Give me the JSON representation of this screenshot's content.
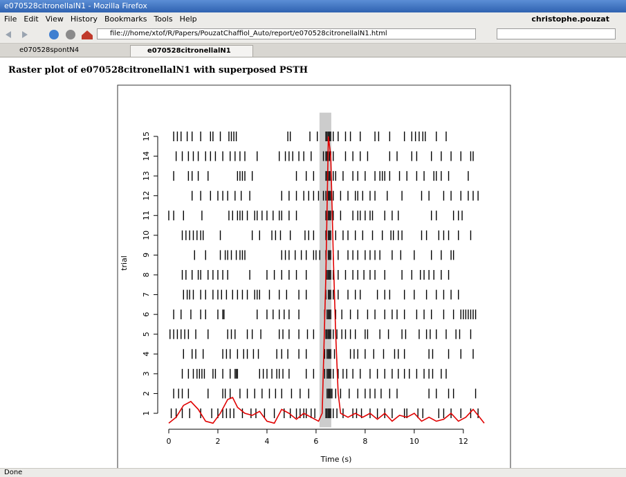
{
  "window": {
    "title": "e070528citronellalN1 - Mozilla Firefox"
  },
  "menu": [
    "File",
    "Edit",
    "View",
    "History",
    "Bookmarks",
    "Tools",
    "Help"
  ],
  "user": "christophe.pouzat",
  "url": "file:///home/xtof/R/Papers/PouzatChaffiol_Auto/report/e070528citronellalN1.html",
  "tabs": [
    "e070528spontN4",
    "e070528citronellalN1"
  ],
  "heading": "Raster plot of e070528citronellalN1 with superposed PSTH",
  "status": "Done",
  "chart_data": {
    "type": "raster",
    "xlabel": "Time (s)",
    "ylabel": "trial",
    "xlim": [
      0,
      12.85
    ],
    "ylim": [
      0.5,
      15.5
    ],
    "xticks": [
      0,
      2,
      4,
      6,
      8,
      10,
      12
    ],
    "yticks": [
      1,
      2,
      3,
      4,
      5,
      6,
      7,
      8,
      9,
      10,
      11,
      12,
      13,
      14,
      15
    ],
    "stimulus": [
      6.14,
      6.62
    ],
    "stimulus_color": "#cccccc",
    "spike_color": "#000000",
    "spikes": [
      [
        0.1,
        0.3,
        0.55,
        0.85,
        1.3,
        1.75,
        2.0,
        2.2,
        2.35,
        2.5,
        2.65,
        3.0,
        3.35,
        3.55,
        3.9,
        4.3,
        4.7,
        4.95,
        5.2,
        5.35,
        5.5,
        5.6,
        5.8,
        5.95,
        6.4,
        6.45,
        6.5,
        6.55,
        6.6,
        6.7,
        6.85,
        7.1,
        7.5,
        7.65,
        7.85,
        8.2,
        8.5,
        8.8,
        9.1,
        9.6,
        9.7,
        10.15,
        10.35,
        11.0,
        11.2,
        11.5,
        11.9,
        12.3,
        12.6
      ],
      [
        0.2,
        0.4,
        0.55,
        0.8,
        1.6,
        2.2,
        2.3,
        2.5,
        2.9,
        3.2,
        3.5,
        3.8,
        4.1,
        4.35,
        4.6,
        5.0,
        5.35,
        5.7,
        6.45,
        6.5,
        6.55,
        6.6,
        6.65,
        6.8,
        7.0,
        7.35,
        7.7,
        8.0,
        8.2,
        8.4,
        8.65,
        9.0,
        9.3,
        10.6,
        10.9,
        11.4,
        11.6,
        12.5
      ],
      [
        0.55,
        0.8,
        1.0,
        1.15,
        1.25,
        1.35,
        1.45,
        1.8,
        1.9,
        2.2,
        2.5,
        2.7,
        2.75,
        2.8,
        3.7,
        3.85,
        4.0,
        4.2,
        4.4,
        4.5,
        4.65,
        4.9,
        5.6,
        5.9,
        6.35,
        6.45,
        6.5,
        6.55,
        6.6,
        6.7,
        6.9,
        7.1,
        7.25,
        7.5,
        7.8,
        8.2,
        8.5,
        8.8,
        9.1,
        9.35,
        9.6,
        9.8,
        10.1,
        10.4,
        10.6,
        10.75,
        11.1,
        11.3
      ],
      [
        0.6,
        0.95,
        1.1,
        1.4,
        2.2,
        2.35,
        2.5,
        2.8,
        3.05,
        3.2,
        3.45,
        3.65,
        4.4,
        4.6,
        4.85,
        5.3,
        5.6,
        6.35,
        6.45,
        6.5,
        6.55,
        6.6,
        6.75,
        7.4,
        7.55,
        7.7,
        8.0,
        8.35,
        8.75,
        9.2,
        9.35,
        9.6,
        10.6,
        10.75,
        11.4,
        11.9,
        12.4
      ],
      [
        0.05,
        0.2,
        0.35,
        0.5,
        0.65,
        0.8,
        1.1,
        1.6,
        2.4,
        2.55,
        2.7,
        3.2,
        3.4,
        3.75,
        4.5,
        4.65,
        4.9,
        5.3,
        5.65,
        5.9,
        6.4,
        6.45,
        6.5,
        6.55,
        6.6,
        6.7,
        6.85,
        7.05,
        7.2,
        7.4,
        7.6,
        8.0,
        8.1,
        8.6,
        8.95,
        9.5,
        9.65,
        10.2,
        10.5,
        10.65,
        10.9,
        11.3,
        11.7,
        11.85,
        12.3
      ],
      [
        0.2,
        0.5,
        0.9,
        1.3,
        1.5,
        2.0,
        2.2,
        2.25,
        3.6,
        4.0,
        4.25,
        4.5,
        4.7,
        4.9,
        5.3,
        6.35,
        6.45,
        6.5,
        6.55,
        6.6,
        6.8,
        7.05,
        7.4,
        7.7,
        8.1,
        8.4,
        8.8,
        9.1,
        9.3,
        9.6,
        10.1,
        10.4,
        10.7,
        11.2,
        11.6,
        11.9,
        12.0,
        12.1,
        12.2,
        12.3,
        12.4,
        12.5
      ],
      [
        0.6,
        0.75,
        0.85,
        1.0,
        1.3,
        1.5,
        1.8,
        2.0,
        2.15,
        2.35,
        2.6,
        2.8,
        3.0,
        3.2,
        3.5,
        3.6,
        3.7,
        4.1,
        4.5,
        4.8,
        5.3,
        5.6,
        6.4,
        6.5,
        6.55,
        6.6,
        6.7,
        6.9,
        7.3,
        7.6,
        7.8,
        8.5,
        8.8,
        9.0,
        9.6,
        10.0,
        10.5,
        10.9,
        11.2,
        11.5,
        11.8
      ],
      [
        0.55,
        0.7,
        0.95,
        1.2,
        1.3,
        1.6,
        1.8,
        2.0,
        2.2,
        2.4,
        3.3,
        4.0,
        4.3,
        4.6,
        4.9,
        5.2,
        5.6,
        6.4,
        6.45,
        6.5,
        6.55,
        6.6,
        6.7,
        6.9,
        7.2,
        7.5,
        7.7,
        7.95,
        8.2,
        8.4,
        8.8,
        9.5,
        9.9,
        10.25,
        10.4,
        10.6,
        10.8,
        11.1,
        11.4
      ],
      [
        1.05,
        1.5,
        2.1,
        2.3,
        2.4,
        2.55,
        2.75,
        2.9,
        3.0,
        3.1,
        4.6,
        4.75,
        4.9,
        5.15,
        5.4,
        5.6,
        5.9,
        6.0,
        6.15,
        6.4,
        6.5,
        6.55,
        6.6,
        6.7,
        6.9,
        7.3,
        7.5,
        7.7,
        8.0,
        8.2,
        8.4,
        8.6,
        9.1,
        9.45,
        10.0,
        10.7,
        11.1,
        11.5,
        11.6
      ],
      [
        0.55,
        0.7,
        0.85,
        1.0,
        1.15,
        1.3,
        1.4,
        2.1,
        3.4,
        3.7,
        4.2,
        4.35,
        4.55,
        4.95,
        5.55,
        5.7,
        5.9,
        6.4,
        6.5,
        6.55,
        6.6,
        6.8,
        7.1,
        7.3,
        7.6,
        7.9,
        8.3,
        8.7,
        9.05,
        9.15,
        9.35,
        9.5,
        10.3,
        10.5,
        11.0,
        11.2,
        11.4,
        11.8,
        12.3
      ],
      [
        0.0,
        0.2,
        0.6,
        1.35,
        2.45,
        2.6,
        2.8,
        2.9,
        3.0,
        3.2,
        3.5,
        3.6,
        3.8,
        4.0,
        4.25,
        4.5,
        4.6,
        4.9,
        5.2,
        6.4,
        6.45,
        6.5,
        6.55,
        6.6,
        6.7,
        7.0,
        7.5,
        7.7,
        7.8,
        8.0,
        8.2,
        8.3,
        8.8,
        9.1,
        9.35,
        10.7,
        10.9,
        11.6,
        11.8,
        11.95
      ],
      [
        0.95,
        1.3,
        1.7,
        2.0,
        2.2,
        2.4,
        2.7,
        2.95,
        3.3,
        4.6,
        4.9,
        5.2,
        5.5,
        5.7,
        5.9,
        6.1,
        6.3,
        6.4,
        6.5,
        6.55,
        6.6,
        6.7,
        7.0,
        7.3,
        7.6,
        7.7,
        7.9,
        8.2,
        8.4,
        8.9,
        9.5,
        10.3,
        10.6,
        11.2,
        11.5,
        11.9,
        12.2,
        12.4,
        12.6
      ],
      [
        0.2,
        0.8,
        0.95,
        1.2,
        1.6,
        2.8,
        2.9,
        3.0,
        3.1,
        3.4,
        5.2,
        5.6,
        5.9,
        6.4,
        6.45,
        6.5,
        6.55,
        6.6,
        6.7,
        6.8,
        7.1,
        7.5,
        7.7,
        8.0,
        8.4,
        8.6,
        8.7,
        8.8,
        9.0,
        9.4,
        9.7,
        10.1,
        10.4,
        10.8,
        10.9,
        11.1,
        11.4,
        12.2
      ],
      [
        0.3,
        0.55,
        0.8,
        1.0,
        1.2,
        1.5,
        1.7,
        1.9,
        2.2,
        2.5,
        2.7,
        2.9,
        3.1,
        3.6,
        4.5,
        4.75,
        4.9,
        5.05,
        5.3,
        5.5,
        5.8,
        6.3,
        6.4,
        6.45,
        6.5,
        6.55,
        6.6,
        6.7,
        7.2,
        7.5,
        7.8,
        8.1,
        9.0,
        9.3,
        9.9,
        10.1,
        10.7,
        11.1,
        11.5,
        11.9,
        12.3,
        12.4
      ],
      [
        0.2,
        0.35,
        0.5,
        0.75,
        0.95,
        1.3,
        1.7,
        1.8,
        2.1,
        2.45,
        2.55,
        2.65,
        2.75,
        4.85,
        4.95,
        5.75,
        6.05,
        6.4,
        6.45,
        6.5,
        6.55,
        6.6,
        6.7,
        6.9,
        7.2,
        7.4,
        7.8,
        8.4,
        8.55,
        9.0,
        9.6,
        9.9,
        10.05,
        10.2,
        10.35,
        10.45,
        10.9,
        11.3
      ]
    ],
    "psth": {
      "color": "#e00000",
      "x": [
        0,
        0.3,
        0.6,
        0.9,
        1.2,
        1.5,
        1.8,
        2.1,
        2.4,
        2.6,
        2.8,
        3.1,
        3.4,
        3.7,
        4.0,
        4.3,
        4.6,
        4.9,
        5.2,
        5.5,
        5.8,
        6.1,
        6.25,
        6.4,
        6.5,
        6.6,
        6.7,
        6.8,
        6.9,
        7.0,
        7.3,
        7.6,
        7.9,
        8.2,
        8.5,
        8.8,
        9.1,
        9.4,
        9.7,
        10.0,
        10.3,
        10.6,
        10.9,
        11.2,
        11.5,
        11.8,
        12.1,
        12.4,
        12.6,
        12.85
      ],
      "values": [
        0.5,
        0.8,
        1.4,
        1.6,
        1.2,
        0.6,
        0.5,
        1.0,
        1.7,
        1.8,
        1.3,
        1.0,
        0.9,
        1.1,
        0.6,
        0.5,
        1.2,
        1.0,
        0.7,
        1.0,
        0.8,
        0.6,
        1.0,
        8,
        15,
        14,
        9,
        5,
        2,
        1,
        0.8,
        1.0,
        0.8,
        1.0,
        0.7,
        1.0,
        0.6,
        0.9,
        0.8,
        1.0,
        0.6,
        0.8,
        0.6,
        0.7,
        1.0,
        0.6,
        0.8,
        1.2,
        0.9,
        0.5
      ]
    }
  }
}
